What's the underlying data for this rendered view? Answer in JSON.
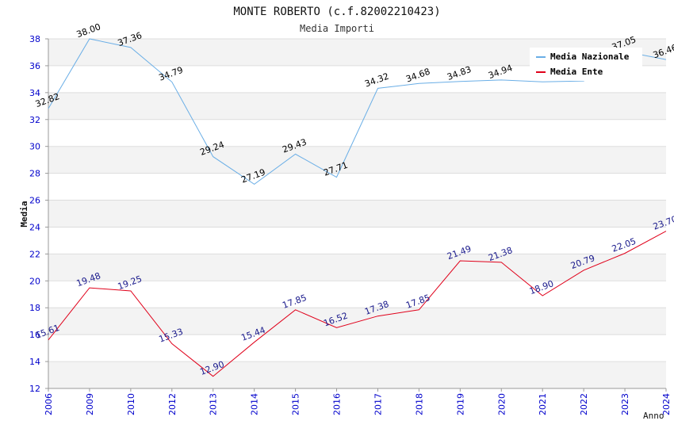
{
  "chart_data": {
    "type": "line",
    "title": "MONTE ROBERTO (c.f.82002210423)",
    "subtitle": "Media Importi",
    "xlabel": "Anno",
    "ylabel": "Media",
    "ylim": [
      12,
      38
    ],
    "ytick_step": 2,
    "categories": [
      "2006",
      "2009",
      "2010",
      "2012",
      "2013",
      "2014",
      "2015",
      "2016",
      "2017",
      "2018",
      "2019",
      "2020",
      "2021",
      "2022",
      "2023",
      "2024"
    ],
    "series": [
      {
        "name": "Media Nazionale",
        "color": "#6aaee6",
        "values": [
          32.82,
          38.0,
          37.36,
          34.79,
          29.24,
          27.19,
          29.43,
          27.71,
          34.32,
          34.68,
          34.83,
          34.94,
          34.8,
          34.87,
          37.05,
          36.46
        ],
        "labels": [
          "32.82",
          "38.00",
          "37.36",
          "34.79",
          "29.24",
          "27.19",
          "29.43",
          "27.71",
          "34.32",
          "34.68",
          "34.83",
          "34.94",
          "",
          "",
          "37.05",
          "36.46"
        ],
        "label_color": "#000000"
      },
      {
        "name": "Media Ente",
        "color": "#e0001a",
        "values": [
          15.61,
          19.48,
          19.25,
          15.33,
          12.9,
          15.44,
          17.85,
          16.52,
          17.38,
          17.85,
          21.49,
          21.38,
          18.9,
          20.79,
          22.05,
          23.7
        ],
        "labels": [
          "15.61",
          "19.48",
          "19.25",
          "15.33",
          "12.90",
          "15.44",
          "17.85",
          "16.52",
          "17.38",
          "17.85",
          "21.49",
          "21.38",
          "18.90",
          "20.79",
          "22.05",
          "23.70"
        ],
        "label_color": "#1a1a8c"
      }
    ],
    "legend_position": "top-right",
    "grid": true,
    "axis_tick_color": "#0000cc"
  }
}
